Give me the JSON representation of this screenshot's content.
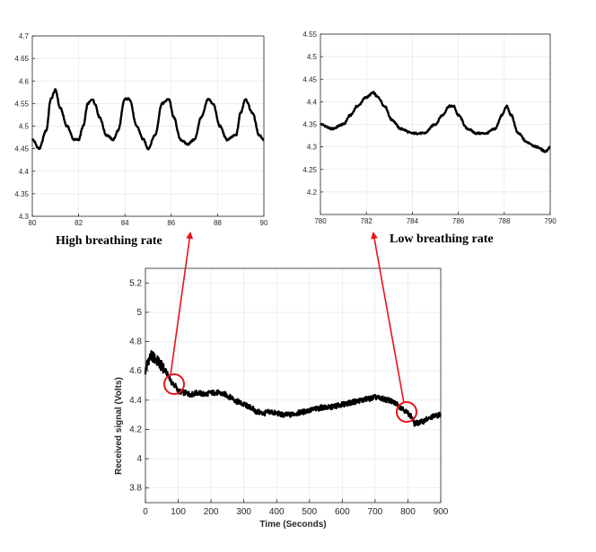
{
  "colors": {
    "signal": "#000000",
    "arrow": "#e8141a",
    "grid": "#e6e6e6",
    "axis": "#262626"
  },
  "annotations": {
    "high": "High breathing rate",
    "low": "Low breathing rate"
  },
  "chart_data": [
    {
      "id": "high",
      "type": "line",
      "title": "",
      "xlabel": "",
      "ylabel": "",
      "xlim": [
        80,
        90
      ],
      "ylim": [
        4.3,
        4.7
      ],
      "xticks": [
        80,
        82,
        84,
        86,
        88,
        90
      ],
      "yticks": [
        4.3,
        4.35,
        4.4,
        4.45,
        4.5,
        4.55,
        4.6,
        4.65,
        4.7
      ],
      "grid": true,
      "series": [
        {
          "x": [
            80,
            80.3,
            80.6,
            80.8,
            81.0,
            81.2,
            81.5,
            81.8,
            82.0,
            82.2,
            82.4,
            82.6,
            82.7,
            82.9,
            83.2,
            83.5,
            83.7,
            84.0,
            84.2,
            84.5,
            84.8,
            85.0,
            85.3,
            85.6,
            85.9,
            86.1,
            86.4,
            86.7,
            87.0,
            87.3,
            87.6,
            87.8,
            88.1,
            88.4,
            88.8,
            89.0,
            89.2,
            89.5,
            89.8,
            90
          ],
          "y": [
            4.47,
            4.45,
            4.49,
            4.56,
            4.58,
            4.54,
            4.5,
            4.47,
            4.47,
            4.5,
            4.55,
            4.56,
            4.55,
            4.52,
            4.48,
            4.47,
            4.49,
            4.56,
            4.56,
            4.5,
            4.47,
            4.45,
            4.48,
            4.55,
            4.56,
            4.52,
            4.47,
            4.46,
            4.47,
            4.52,
            4.56,
            4.55,
            4.5,
            4.47,
            4.48,
            4.53,
            4.56,
            4.53,
            4.48,
            4.47
          ]
        }
      ]
    },
    {
      "id": "low",
      "type": "line",
      "title": "",
      "xlabel": "",
      "ylabel": "",
      "xlim": [
        780,
        790
      ],
      "ylim": [
        4.15,
        4.55
      ],
      "xticks": [
        780,
        782,
        784,
        786,
        788,
        790
      ],
      "yticks": [
        4.2,
        4.25,
        4.3,
        4.35,
        4.4,
        4.45,
        4.5,
        4.55
      ],
      "grid": true,
      "series": [
        {
          "x": [
            780,
            780.5,
            781.0,
            781.3,
            781.6,
            782.0,
            782.3,
            782.5,
            782.8,
            783.1,
            783.5,
            784.0,
            784.5,
            785.0,
            785.3,
            785.6,
            785.8,
            786.0,
            786.4,
            786.8,
            787.2,
            787.6,
            787.9,
            788.1,
            788.3,
            788.6,
            789.0,
            789.4,
            789.8,
            790
          ],
          "y": [
            4.35,
            4.34,
            4.35,
            4.37,
            4.39,
            4.41,
            4.42,
            4.41,
            4.39,
            4.36,
            4.34,
            4.33,
            4.33,
            4.35,
            4.37,
            4.39,
            4.39,
            4.37,
            4.34,
            4.33,
            4.33,
            4.34,
            4.37,
            4.39,
            4.37,
            4.33,
            4.31,
            4.3,
            4.29,
            4.3
          ]
        }
      ]
    },
    {
      "id": "main",
      "type": "line",
      "title": "",
      "xlabel": "Time (Seconds)",
      "ylabel": "Received signal (Volts)",
      "xlim": [
        0,
        900
      ],
      "ylim": [
        3.7,
        5.3
      ],
      "xticks": [
        0,
        100,
        200,
        300,
        400,
        500,
        600,
        700,
        800,
        900
      ],
      "yticks": [
        3.8,
        4,
        4.2,
        4.4,
        4.6,
        4.8,
        5,
        5.2
      ],
      "grid": true,
      "series": [
        {
          "x": [
            0,
            10,
            20,
            30,
            40,
            50,
            60,
            70,
            80,
            90,
            100,
            120,
            140,
            160,
            180,
            200,
            220,
            240,
            260,
            280,
            300,
            320,
            340,
            360,
            380,
            400,
            420,
            440,
            460,
            480,
            500,
            520,
            540,
            560,
            580,
            600,
            620,
            640,
            660,
            680,
            700,
            720,
            740,
            760,
            780,
            790,
            800,
            810,
            820,
            840,
            860,
            880,
            900
          ],
          "y": [
            4.6,
            4.68,
            4.7,
            4.68,
            4.66,
            4.63,
            4.6,
            4.57,
            4.52,
            4.5,
            4.46,
            4.45,
            4.44,
            4.45,
            4.44,
            4.45,
            4.45,
            4.44,
            4.42,
            4.39,
            4.37,
            4.35,
            4.32,
            4.31,
            4.32,
            4.31,
            4.3,
            4.3,
            4.31,
            4.32,
            4.33,
            4.34,
            4.35,
            4.35,
            4.36,
            4.37,
            4.38,
            4.39,
            4.4,
            4.41,
            4.42,
            4.41,
            4.4,
            4.38,
            4.35,
            4.33,
            4.31,
            4.29,
            4.24,
            4.25,
            4.27,
            4.29,
            4.3
          ]
        }
      ]
    }
  ]
}
